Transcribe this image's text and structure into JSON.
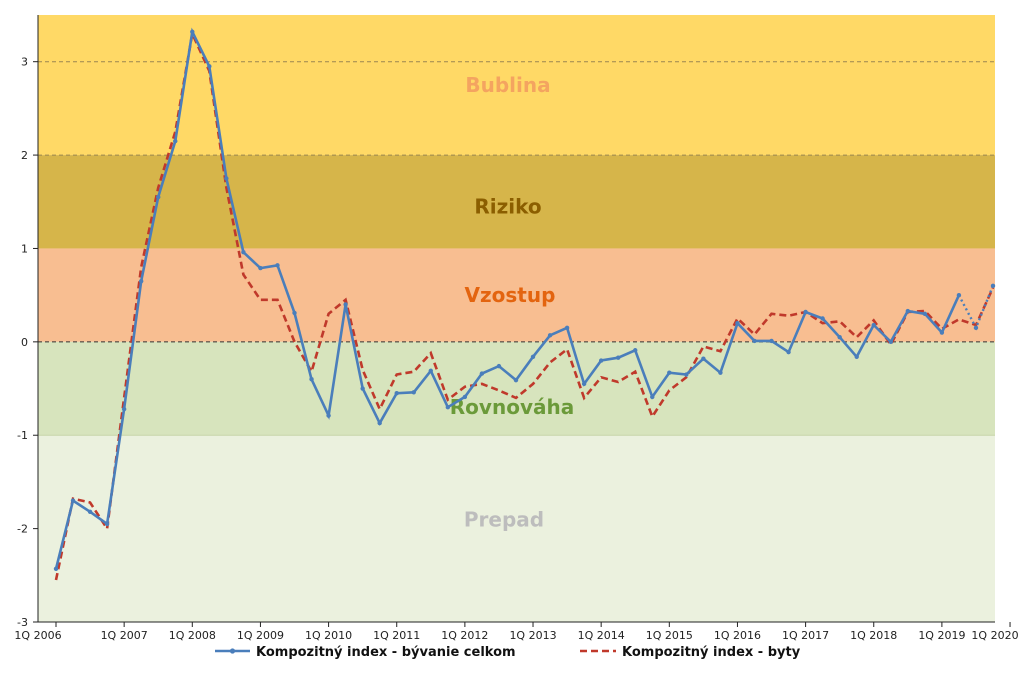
{
  "chart_data": {
    "type": "line",
    "ylim": [
      -3,
      3.5
    ],
    "y_ticks": [
      "3",
      "2",
      "1",
      "0",
      "-1",
      "-2",
      "-3"
    ],
    "x_tick_labels": [
      "1Q 2006",
      "1Q 2007",
      "1Q 2008",
      "1Q 2009",
      "1Q 2010",
      "1Q 2011",
      "1Q 2012",
      "1Q 2013",
      "1Q 2014",
      "1Q 2015",
      "1Q 2016",
      "1Q 2017",
      "1Q 2018",
      "1Q 2019",
      "1Q 2020"
    ],
    "grid": "dashed lines at 3 and 2",
    "zones": [
      {
        "name": "Bublina",
        "from": 2,
        "to": 3.5,
        "color": "#ffd966",
        "label_color": "#f4a460"
      },
      {
        "name": "Riziko",
        "from": 1,
        "to": 2,
        "color": "#d6b54a",
        "label_color": "#8b5e00"
      },
      {
        "name": "Vzostup",
        "from": 0,
        "to": 1,
        "color": "#f8be91",
        "label_color": "#e3640f"
      },
      {
        "name": "Rovnováha",
        "from": -1,
        "to": 0,
        "color": "#d7e4bd",
        "label_color": "#6b9a3a"
      },
      {
        "name": "Prepad",
        "from": -3,
        "to": -1,
        "color": "#ebf1de",
        "label_color": "#bdbdbd"
      }
    ],
    "series": [
      {
        "name": "Kompozitný index - bývanie celkom",
        "color": "#4a7ebb",
        "style": "solid-marker",
        "values": [
          -2.43,
          -1.7,
          -1.82,
          -1.95,
          -0.72,
          0.65,
          1.55,
          2.15,
          3.32,
          2.95,
          1.75,
          0.96,
          0.79,
          0.82,
          0.31,
          -0.4,
          -0.79,
          0.4,
          -0.5,
          -0.87,
          -0.55,
          -0.54,
          -0.31,
          -0.7,
          -0.59,
          -0.34,
          -0.26,
          -0.41,
          -0.16,
          0.07,
          0.15,
          -0.45,
          -0.2,
          -0.17,
          -0.09,
          -0.59,
          -0.33,
          -0.35,
          -0.18,
          -0.33,
          0.2,
          0.01,
          0.01,
          -0.11,
          0.32,
          0.25,
          0.05,
          -0.16,
          0.18,
          0.0,
          0.33,
          0.3,
          0.1,
          0.5,
          0.15,
          0.6
        ]
      },
      {
        "name": "Kompozitný index - byty",
        "color": "#c0392b",
        "style": "dashed",
        "values": [
          -2.55,
          -1.68,
          -1.72,
          -2.0,
          -0.6,
          0.8,
          1.65,
          2.25,
          3.3,
          2.9,
          1.65,
          0.72,
          0.45,
          0.45,
          0.0,
          -0.32,
          0.3,
          0.45,
          -0.3,
          -0.72,
          -0.35,
          -0.32,
          -0.12,
          -0.62,
          -0.48,
          -0.45,
          -0.52,
          -0.6,
          -0.45,
          -0.22,
          -0.08,
          -0.6,
          -0.38,
          -0.43,
          -0.32,
          -0.8,
          -0.52,
          -0.38,
          -0.05,
          -0.1,
          0.25,
          0.08,
          0.3,
          0.28,
          0.32,
          0.2,
          0.22,
          0.05,
          0.23,
          -0.03,
          0.32,
          0.33,
          0.14,
          0.24,
          0.18,
          0.58
        ]
      }
    ]
  }
}
